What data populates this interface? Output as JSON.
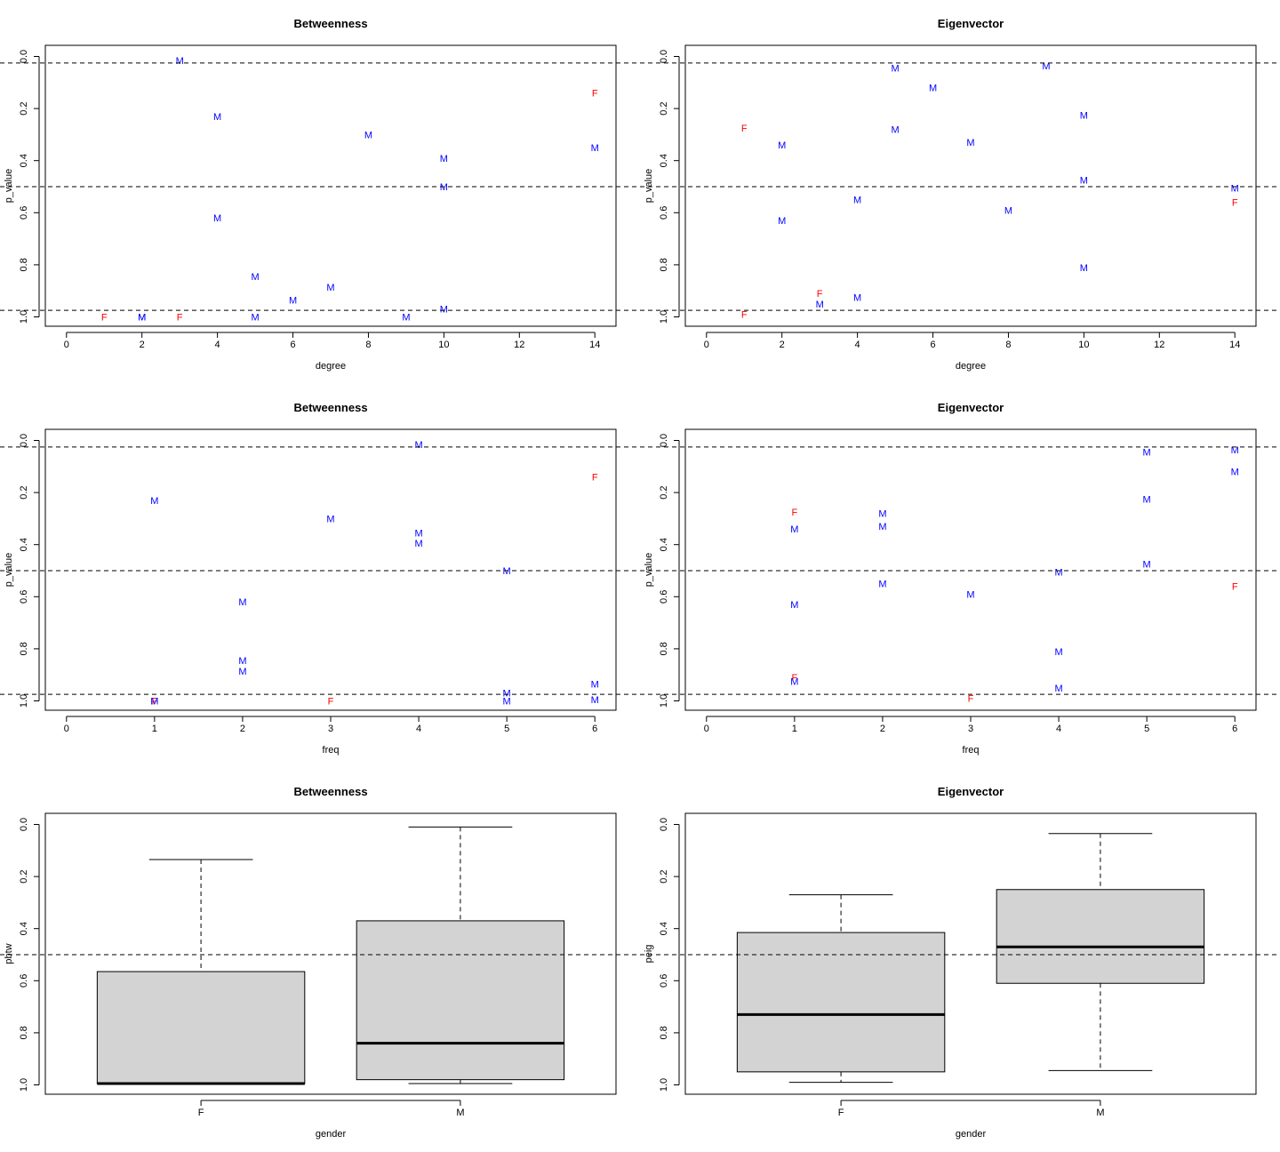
{
  "colors": {
    "F": "#ff0000",
    "M": "#0000ff",
    "box_fill": "#d3d3d3"
  },
  "chart_data": [
    {
      "type": "scatter",
      "id": "deg-betw",
      "title": "Betweenness",
      "xlabel": "degree",
      "ylabel": "p_value",
      "xlim": [
        -0.56,
        14.56
      ],
      "xticks": [
        0,
        2,
        4,
        6,
        8,
        10,
        12,
        14
      ],
      "ylim": [
        0,
        1.0
      ],
      "y_reversed": true,
      "yticks": [
        0.0,
        0.2,
        0.4,
        0.6,
        0.8,
        1.0
      ],
      "hlines": [
        0.025,
        0.5,
        0.975
      ],
      "points": [
        {
          "x": 3,
          "y": 0.015,
          "label": "M"
        },
        {
          "x": 14,
          "y": 0.14,
          "label": "F"
        },
        {
          "x": 4,
          "y": 0.23,
          "label": "M"
        },
        {
          "x": 8,
          "y": 0.3,
          "label": "M"
        },
        {
          "x": 14,
          "y": 0.35,
          "label": "M"
        },
        {
          "x": 10,
          "y": 0.39,
          "label": "M"
        },
        {
          "x": 10,
          "y": 0.5,
          "label": "M"
        },
        {
          "x": 4,
          "y": 0.62,
          "label": "M"
        },
        {
          "x": 5,
          "y": 0.845,
          "label": "M"
        },
        {
          "x": 7,
          "y": 0.885,
          "label": "M"
        },
        {
          "x": 6,
          "y": 0.935,
          "label": "M"
        },
        {
          "x": 10,
          "y": 0.97,
          "label": "M"
        },
        {
          "x": 1,
          "y": 1.0,
          "label": "F"
        },
        {
          "x": 2,
          "y": 1.0,
          "label": "M"
        },
        {
          "x": 2,
          "y": 1.0,
          "label": "M"
        },
        {
          "x": 3,
          "y": 1.0,
          "label": "F"
        },
        {
          "x": 5,
          "y": 1.0,
          "label": "M"
        },
        {
          "x": 9,
          "y": 1.0,
          "label": "M"
        }
      ]
    },
    {
      "type": "scatter",
      "id": "deg-eig",
      "title": "Eigenvector",
      "xlabel": "degree",
      "ylabel": "p_value",
      "xlim": [
        -0.56,
        14.56
      ],
      "xticks": [
        0,
        2,
        4,
        6,
        8,
        10,
        12,
        14
      ],
      "ylim": [
        0,
        1.0
      ],
      "y_reversed": true,
      "yticks": [
        0.0,
        0.2,
        0.4,
        0.6,
        0.8,
        1.0
      ],
      "hlines": [
        0.025,
        0.5,
        0.975
      ],
      "points": [
        {
          "x": 9,
          "y": 0.035,
          "label": "M"
        },
        {
          "x": 5,
          "y": 0.045,
          "label": "M"
        },
        {
          "x": 6,
          "y": 0.12,
          "label": "M"
        },
        {
          "x": 10,
          "y": 0.225,
          "label": "M"
        },
        {
          "x": 1,
          "y": 0.275,
          "label": "F"
        },
        {
          "x": 5,
          "y": 0.28,
          "label": "M"
        },
        {
          "x": 7,
          "y": 0.33,
          "label": "M"
        },
        {
          "x": 2,
          "y": 0.34,
          "label": "M"
        },
        {
          "x": 10,
          "y": 0.475,
          "label": "M"
        },
        {
          "x": 14,
          "y": 0.505,
          "label": "M"
        },
        {
          "x": 4,
          "y": 0.55,
          "label": "M"
        },
        {
          "x": 14,
          "y": 0.56,
          "label": "F"
        },
        {
          "x": 8,
          "y": 0.59,
          "label": "M"
        },
        {
          "x": 2,
          "y": 0.63,
          "label": "M"
        },
        {
          "x": 10,
          "y": 0.81,
          "label": "M"
        },
        {
          "x": 3,
          "y": 0.91,
          "label": "F"
        },
        {
          "x": 4,
          "y": 0.925,
          "label": "M"
        },
        {
          "x": 3,
          "y": 0.95,
          "label": "M"
        },
        {
          "x": 1,
          "y": 0.99,
          "label": "F"
        }
      ]
    },
    {
      "type": "scatter",
      "id": "freq-betw",
      "title": "Betweenness",
      "xlabel": "freq",
      "ylabel": "p_value",
      "xlim": [
        -0.24,
        6.24
      ],
      "xticks": [
        0,
        1,
        2,
        3,
        4,
        5,
        6
      ],
      "ylim": [
        0,
        1.0
      ],
      "y_reversed": true,
      "yticks": [
        0.0,
        0.2,
        0.4,
        0.6,
        0.8,
        1.0
      ],
      "hlines": [
        0.025,
        0.5,
        0.975
      ],
      "points": [
        {
          "x": 4,
          "y": 0.015,
          "label": "M"
        },
        {
          "x": 6,
          "y": 0.14,
          "label": "F"
        },
        {
          "x": 1,
          "y": 0.23,
          "label": "M"
        },
        {
          "x": 3,
          "y": 0.3,
          "label": "M"
        },
        {
          "x": 4,
          "y": 0.355,
          "label": "M"
        },
        {
          "x": 4,
          "y": 0.395,
          "label": "M"
        },
        {
          "x": 5,
          "y": 0.5,
          "label": "M"
        },
        {
          "x": 2,
          "y": 0.62,
          "label": "M"
        },
        {
          "x": 2,
          "y": 0.845,
          "label": "M"
        },
        {
          "x": 2,
          "y": 0.885,
          "label": "M"
        },
        {
          "x": 6,
          "y": 0.935,
          "label": "M"
        },
        {
          "x": 5,
          "y": 0.97,
          "label": "M"
        },
        {
          "x": 1,
          "y": 1.0,
          "label": "F"
        },
        {
          "x": 1,
          "y": 1.0,
          "label": "M"
        },
        {
          "x": 3,
          "y": 1.0,
          "label": "F"
        },
        {
          "x": 5,
          "y": 1.0,
          "label": "M"
        },
        {
          "x": 6,
          "y": 0.995,
          "label": "M"
        }
      ]
    },
    {
      "type": "scatter",
      "id": "freq-eig",
      "title": "Eigenvector",
      "xlabel": "freq",
      "ylabel": "p_value",
      "xlim": [
        -0.24,
        6.24
      ],
      "xticks": [
        0,
        1,
        2,
        3,
        4,
        5,
        6
      ],
      "ylim": [
        0,
        1.0
      ],
      "y_reversed": true,
      "yticks": [
        0.0,
        0.2,
        0.4,
        0.6,
        0.8,
        1.0
      ],
      "hlines": [
        0.025,
        0.5,
        0.975
      ],
      "points": [
        {
          "x": 6,
          "y": 0.035,
          "label": "M"
        },
        {
          "x": 5,
          "y": 0.045,
          "label": "M"
        },
        {
          "x": 6,
          "y": 0.12,
          "label": "M"
        },
        {
          "x": 5,
          "y": 0.225,
          "label": "M"
        },
        {
          "x": 1,
          "y": 0.275,
          "label": "F"
        },
        {
          "x": 2,
          "y": 0.28,
          "label": "M"
        },
        {
          "x": 2,
          "y": 0.33,
          "label": "M"
        },
        {
          "x": 1,
          "y": 0.34,
          "label": "M"
        },
        {
          "x": 5,
          "y": 0.475,
          "label": "M"
        },
        {
          "x": 4,
          "y": 0.505,
          "label": "M"
        },
        {
          "x": 2,
          "y": 0.55,
          "label": "M"
        },
        {
          "x": 6,
          "y": 0.56,
          "label": "F"
        },
        {
          "x": 3,
          "y": 0.59,
          "label": "M"
        },
        {
          "x": 1,
          "y": 0.63,
          "label": "M"
        },
        {
          "x": 4,
          "y": 0.81,
          "label": "M"
        },
        {
          "x": 1,
          "y": 0.91,
          "label": "F"
        },
        {
          "x": 1,
          "y": 0.925,
          "label": "M"
        },
        {
          "x": 4,
          "y": 0.95,
          "label": "M"
        },
        {
          "x": 3,
          "y": 0.99,
          "label": "F"
        }
      ]
    },
    {
      "type": "boxplot",
      "id": "gender-betw",
      "title": "Betweenness",
      "xlabel": "gender",
      "ylabel": "pbtw",
      "categories": [
        "F",
        "M"
      ],
      "ylim": [
        0,
        1.0
      ],
      "y_reversed": true,
      "yticks": [
        0.0,
        0.2,
        0.4,
        0.6,
        0.8,
        1.0
      ],
      "hlines": [
        0.5
      ],
      "boxes": [
        {
          "min": 0.135,
          "q1": 0.565,
          "median": 0.995,
          "q3": 0.995,
          "max": 0.995
        },
        {
          "min": 0.01,
          "q1": 0.37,
          "median": 0.84,
          "q3": 0.98,
          "max": 0.995
        }
      ]
    },
    {
      "type": "boxplot",
      "id": "gender-eig",
      "title": "Eigenvector",
      "xlabel": "gender",
      "ylabel": "peig",
      "categories": [
        "F",
        "M"
      ],
      "ylim": [
        0,
        1.0
      ],
      "y_reversed": true,
      "yticks": [
        0.0,
        0.2,
        0.4,
        0.6,
        0.8,
        1.0
      ],
      "hlines": [
        0.5
      ],
      "boxes": [
        {
          "min": 0.27,
          "q1": 0.415,
          "median": 0.73,
          "q3": 0.95,
          "max": 0.99
        },
        {
          "min": 0.035,
          "q1": 0.25,
          "median": 0.47,
          "q3": 0.61,
          "max": 0.945
        }
      ]
    }
  ]
}
